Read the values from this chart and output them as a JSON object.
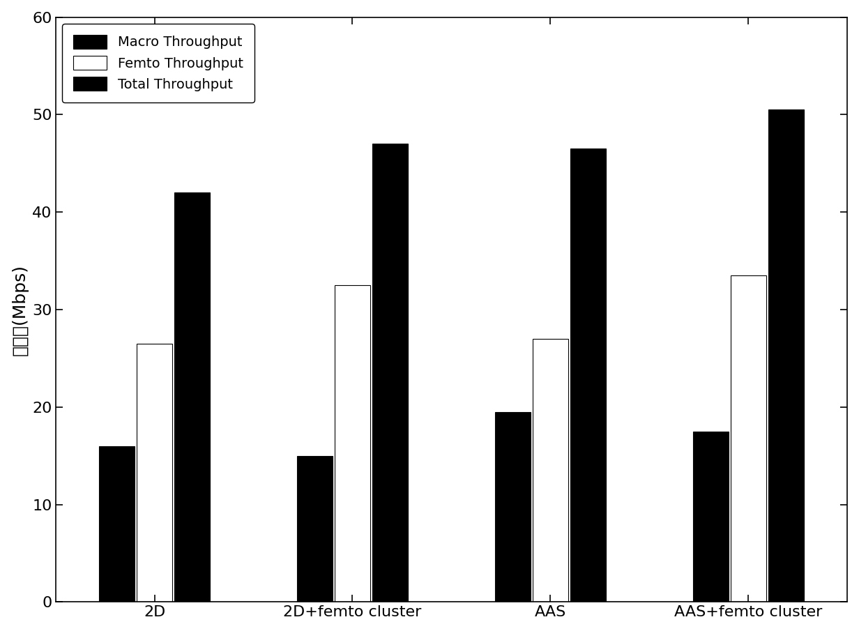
{
  "categories": [
    "2D",
    "2D+femto cluster",
    "AAS",
    "AAS+femto cluster"
  ],
  "macro_throughput": [
    16.0,
    15.0,
    19.5,
    17.5
  ],
  "femto_throughput": [
    26.5,
    32.5,
    27.0,
    33.5
  ],
  "total_throughput": [
    42.0,
    47.0,
    46.5,
    50.5
  ],
  "ylabel": "吞吐量(Mbps)",
  "ylim": [
    0,
    60
  ],
  "yticks": [
    0,
    10,
    20,
    30,
    40,
    50,
    60
  ],
  "bar_width": 0.18,
  "macro_color": "#000000",
  "femto_color": "#ffffff",
  "total_color": "#000000",
  "legend_labels": [
    "Macro Throughput",
    "Femto Throughput",
    "Total Throughput"
  ],
  "background_color": "#ffffff",
  "fontsize_ticks": 16,
  "fontsize_ylabel": 18,
  "fontsize_legend": 14
}
